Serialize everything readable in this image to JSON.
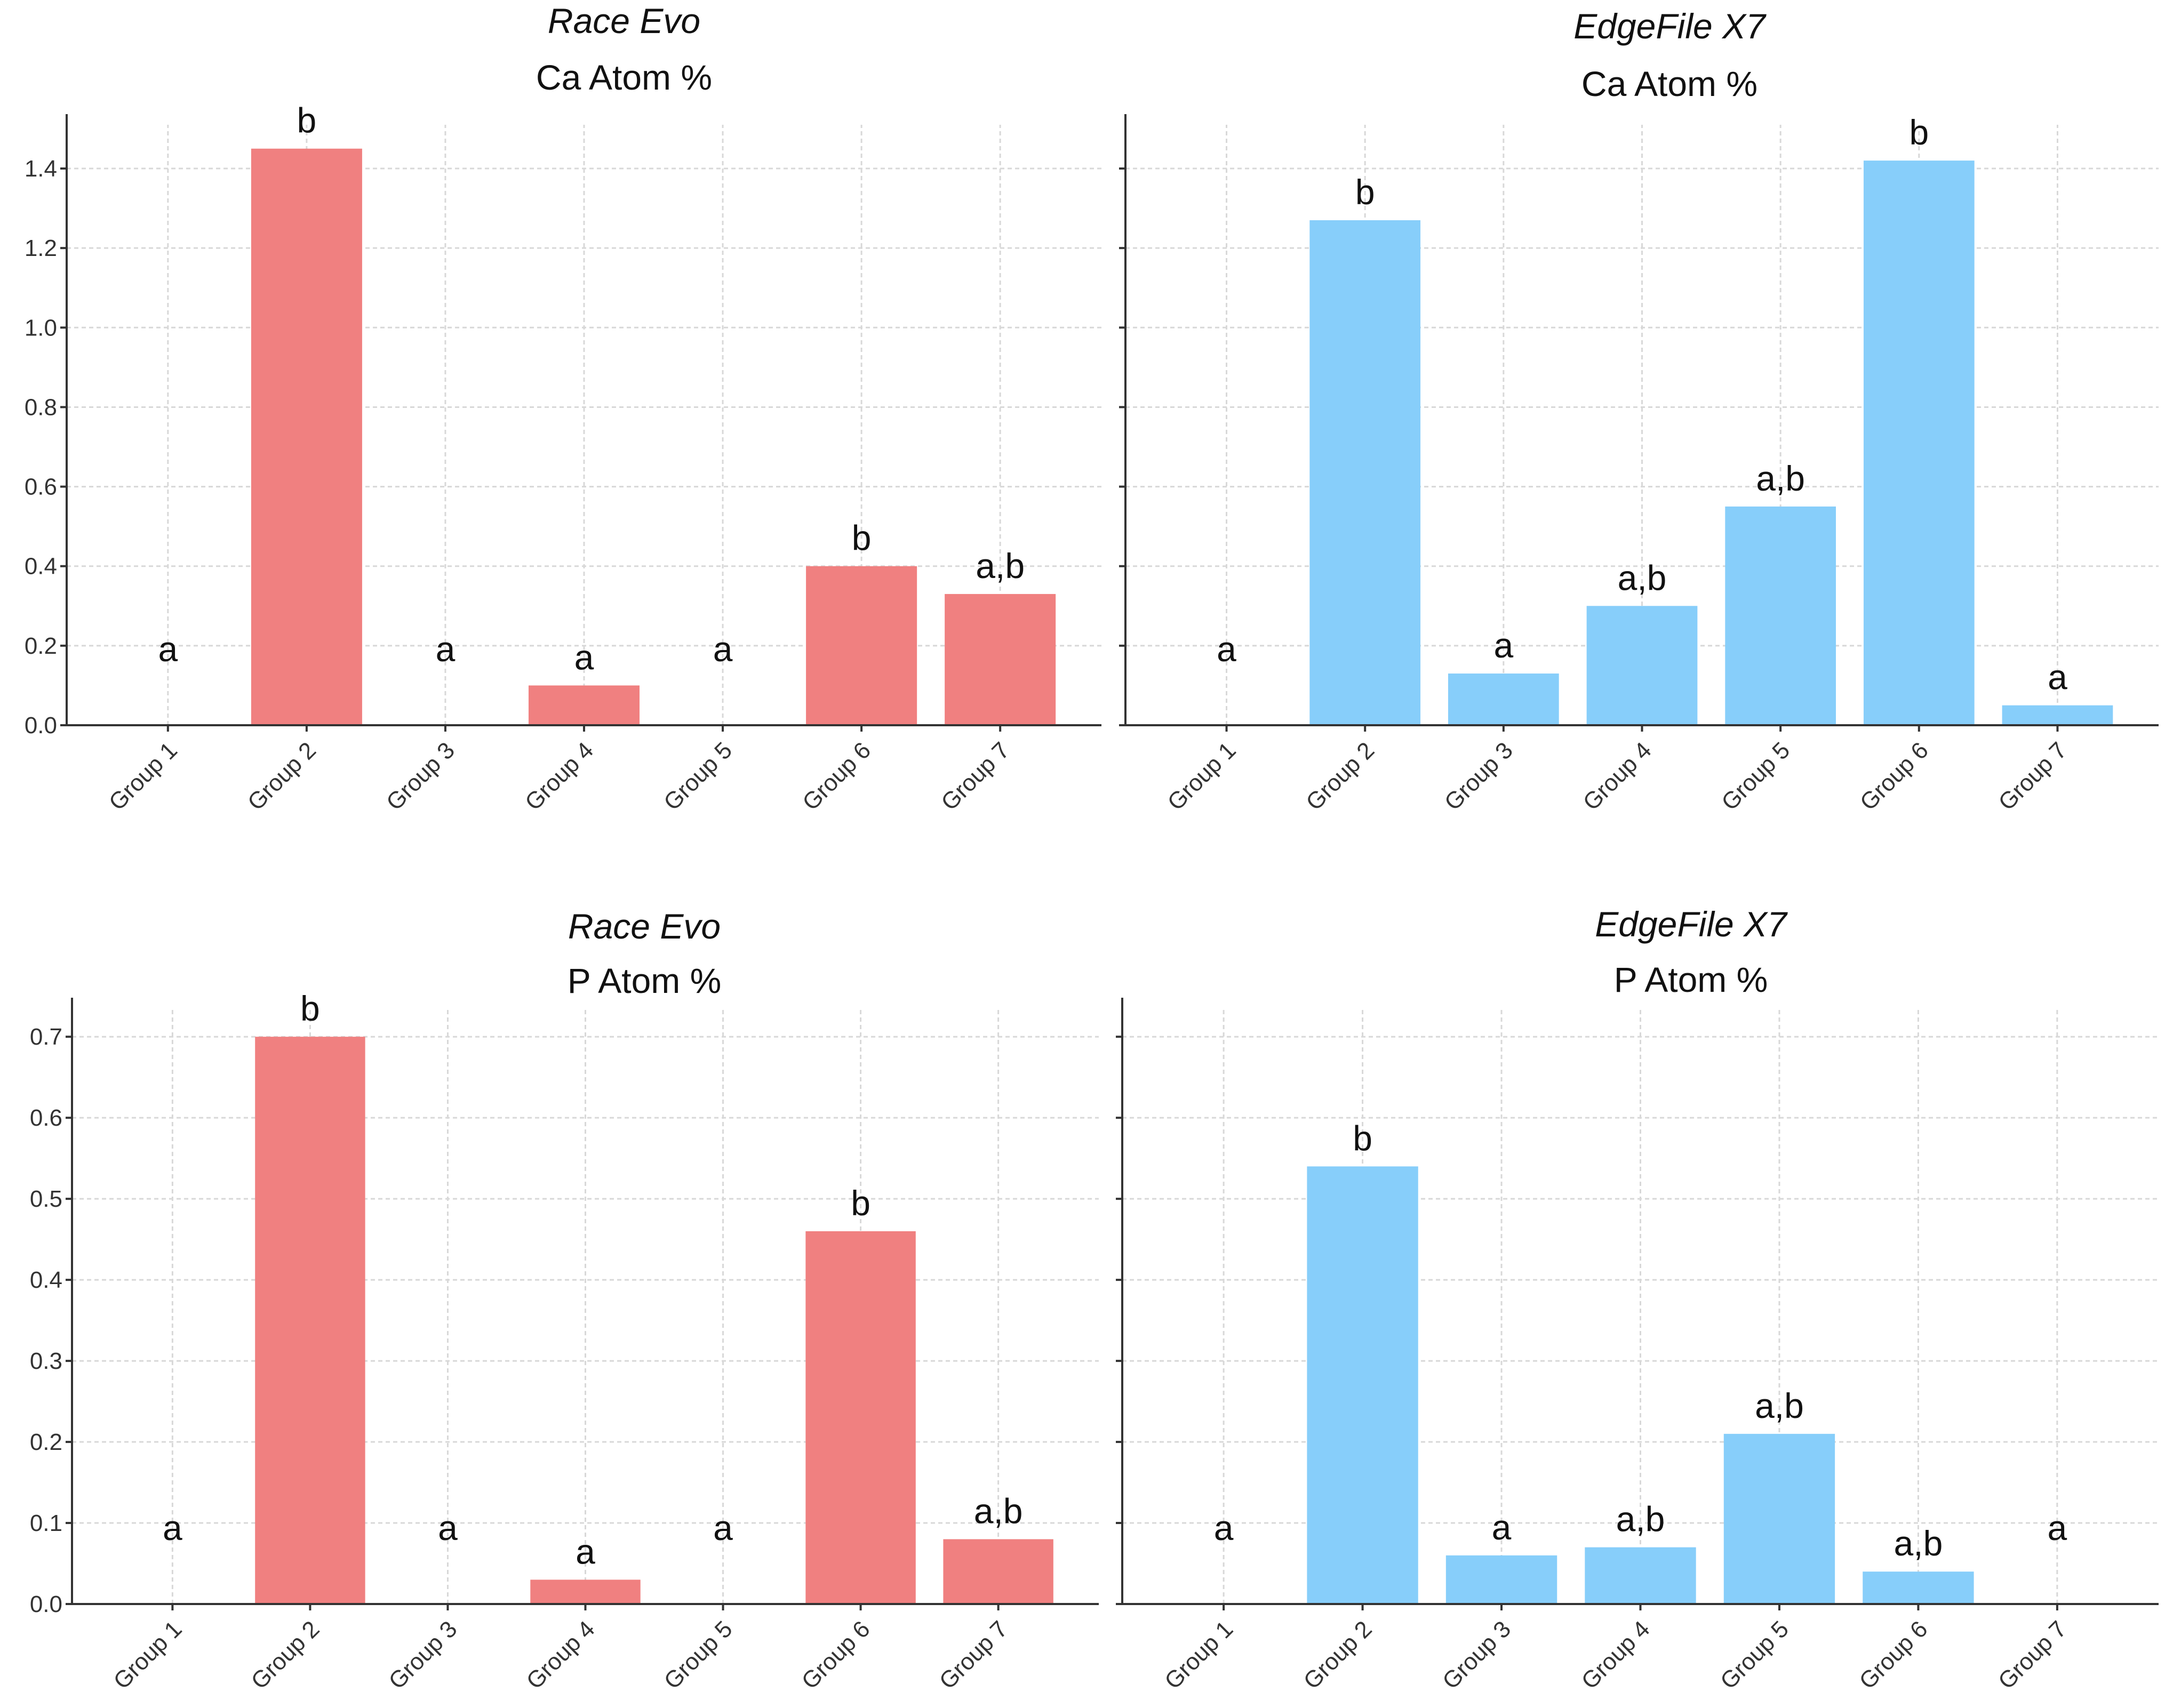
{
  "chart_data": [
    {
      "type": "bar",
      "title": "Race Evo",
      "subtitle": "Ca Atom %",
      "categories": [
        "Group 1",
        "Group 2",
        "Group 3",
        "Group 4",
        "Group 5",
        "Group 6",
        "Group 7"
      ],
      "values": [
        0,
        1.45,
        0,
        0.1,
        0,
        0.4,
        0.33
      ],
      "annotations": [
        "a",
        "b",
        "a",
        "a",
        "a",
        "b",
        "a,b"
      ],
      "ylim": [
        0,
        1.51
      ],
      "yticks": [
        "0.0",
        "0.2",
        "0.4",
        "0.6",
        "0.8",
        "1.0",
        "1.2",
        "1.4"
      ],
      "show_ytick_labels": true,
      "color": "#f08080",
      "grid": true
    },
    {
      "type": "bar",
      "title": "EdgeFile X7",
      "subtitle": "Ca Atom %",
      "categories": [
        "Group 1",
        "Group 2",
        "Group 3",
        "Group 4",
        "Group 5",
        "Group 6",
        "Group 7"
      ],
      "values": [
        0,
        1.27,
        0.13,
        0.3,
        0.55,
        1.42,
        0.05
      ],
      "annotations": [
        "a",
        "b",
        "a",
        "a,b",
        "a,b",
        "b",
        "a"
      ],
      "ylim": [
        0,
        1.51
      ],
      "yticks": [
        "0.0",
        "0.2",
        "0.4",
        "0.6",
        "0.8",
        "1.0",
        "1.2",
        "1.4"
      ],
      "show_ytick_labels": false,
      "color": "#87cefa",
      "grid": true
    },
    {
      "type": "bar",
      "title": "Race Evo",
      "subtitle": "P Atom %",
      "categories": [
        "Group 1",
        "Group 2",
        "Group 3",
        "Group 4",
        "Group 5",
        "Group 6",
        "Group 7"
      ],
      "values": [
        0,
        0.7,
        0,
        0.03,
        0,
        0.46,
        0.08
      ],
      "annotations": [
        "a",
        "b",
        "a",
        "a",
        "a",
        "b",
        "a,b"
      ],
      "ylim": [
        0,
        0.735
      ],
      "yticks": [
        "0.0",
        "0.1",
        "0.2",
        "0.3",
        "0.4",
        "0.5",
        "0.6",
        "0.7"
      ],
      "show_ytick_labels": true,
      "color": "#f08080",
      "grid": true
    },
    {
      "type": "bar",
      "title": "EdgeFile X7",
      "subtitle": "P Atom %",
      "categories": [
        "Group 1",
        "Group 2",
        "Group 3",
        "Group 4",
        "Group 5",
        "Group 6",
        "Group 7"
      ],
      "values": [
        0,
        0.54,
        0.06,
        0.07,
        0.21,
        0.04,
        0
      ],
      "annotations": [
        "a",
        "b",
        "a",
        "a,b",
        "a,b",
        "a,b",
        "a"
      ],
      "ylim": [
        0,
        0.735
      ],
      "yticks": [
        "0.0",
        "0.1",
        "0.2",
        "0.3",
        "0.4",
        "0.5",
        "0.6",
        "0.7"
      ],
      "show_ytick_labels": false,
      "color": "#87cefa",
      "grid": true
    }
  ]
}
